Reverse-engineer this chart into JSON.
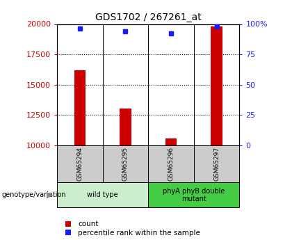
{
  "title": "GDS1702 / 267261_at",
  "samples": [
    "GSM65294",
    "GSM65295",
    "GSM65296",
    "GSM65297"
  ],
  "counts": [
    16200,
    13050,
    10550,
    19800
  ],
  "percentiles": [
    96,
    94,
    92,
    98
  ],
  "ylim_left": [
    10000,
    20000
  ],
  "ylim_right": [
    0,
    100
  ],
  "yticks_left": [
    10000,
    12500,
    15000,
    17500,
    20000
  ],
  "yticks_right": [
    0,
    25,
    50,
    75,
    100
  ],
  "bar_color": "#cc0000",
  "dot_color": "#1a1aff",
  "bar_width": 0.25,
  "groups": [
    {
      "label": "wild type",
      "samples_idx": [
        0,
        1
      ],
      "color": "#cceecc"
    },
    {
      "label": "phyA phyB double\nmutant",
      "samples_idx": [
        2,
        3
      ],
      "color": "#44cc44"
    }
  ],
  "legend_count_label": "count",
  "legend_pct_label": "percentile rank within the sample",
  "genotype_label": "genotype/variation",
  "cell_bg": "#cccccc",
  "plot_bg": "white",
  "fig_bg": "white",
  "title_fontsize": 10,
  "tick_fontsize": 8,
  "label_fontsize": 7,
  "legend_fontsize": 7.5
}
